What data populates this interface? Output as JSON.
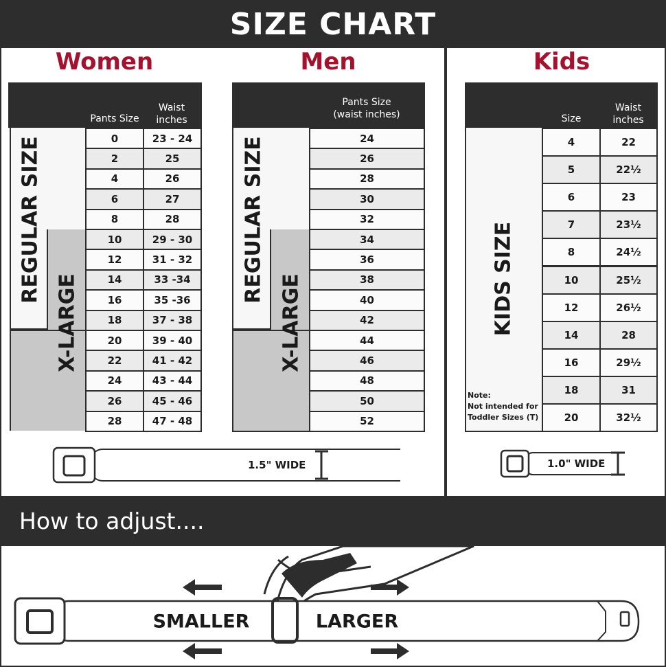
{
  "title": "SIZE CHART",
  "accent_color": "#a3122f",
  "women": {
    "title": "Women",
    "col1": "Pants Size",
    "col2_line1": "Waist",
    "col2_line2": "inches",
    "regular_label": "REGULAR SIZE",
    "xlarge_label": "X-LARGE",
    "rows": [
      [
        "0",
        "23 - 24"
      ],
      [
        "2",
        "25"
      ],
      [
        "4",
        "26"
      ],
      [
        "6",
        "27"
      ],
      [
        "8",
        "28"
      ],
      [
        "10",
        "29 - 30"
      ],
      [
        "12",
        "31 - 32"
      ],
      [
        "14",
        "33 -34"
      ],
      [
        "16",
        "35 -36"
      ],
      [
        "18",
        "37 - 38"
      ],
      [
        "20",
        "39 - 40"
      ],
      [
        "22",
        "41 - 42"
      ],
      [
        "24",
        "43 - 44"
      ],
      [
        "26",
        "45 - 46"
      ],
      [
        "28",
        "47 - 48"
      ]
    ],
    "belt_width": "1.5\" WIDE"
  },
  "men": {
    "title": "Men",
    "col1_line1": "Pants Size",
    "col1_line2": "(waist inches)",
    "regular_label": "REGULAR SIZE",
    "xlarge_label": "X-LARGE",
    "rows": [
      "24",
      "26",
      "28",
      "30",
      "32",
      "34",
      "36",
      "38",
      "40",
      "42",
      "44",
      "46",
      "48",
      "50",
      "52"
    ]
  },
  "kids": {
    "title": "Kids",
    "col1": "Size",
    "col2_line1": "Waist",
    "col2_line2": "inches",
    "label": "KIDS SIZE",
    "note_line1": "Note:",
    "note_line2": "Not intended for",
    "note_line3": "Toddler Sizes (T)",
    "rows": [
      [
        "4",
        "22"
      ],
      [
        "5",
        "22½"
      ],
      [
        "6",
        "23"
      ],
      [
        "7",
        "23½"
      ],
      [
        "8",
        "24½"
      ],
      [
        "10",
        "25½"
      ],
      [
        "12",
        "26½"
      ],
      [
        "14",
        "28"
      ],
      [
        "16",
        "29½"
      ],
      [
        "18",
        "31"
      ],
      [
        "20",
        "32½"
      ]
    ],
    "belt_width": "1.0\" WIDE"
  },
  "adjust": {
    "title": "How to adjust....",
    "smaller": "SMALLER",
    "larger": "LARGER"
  }
}
